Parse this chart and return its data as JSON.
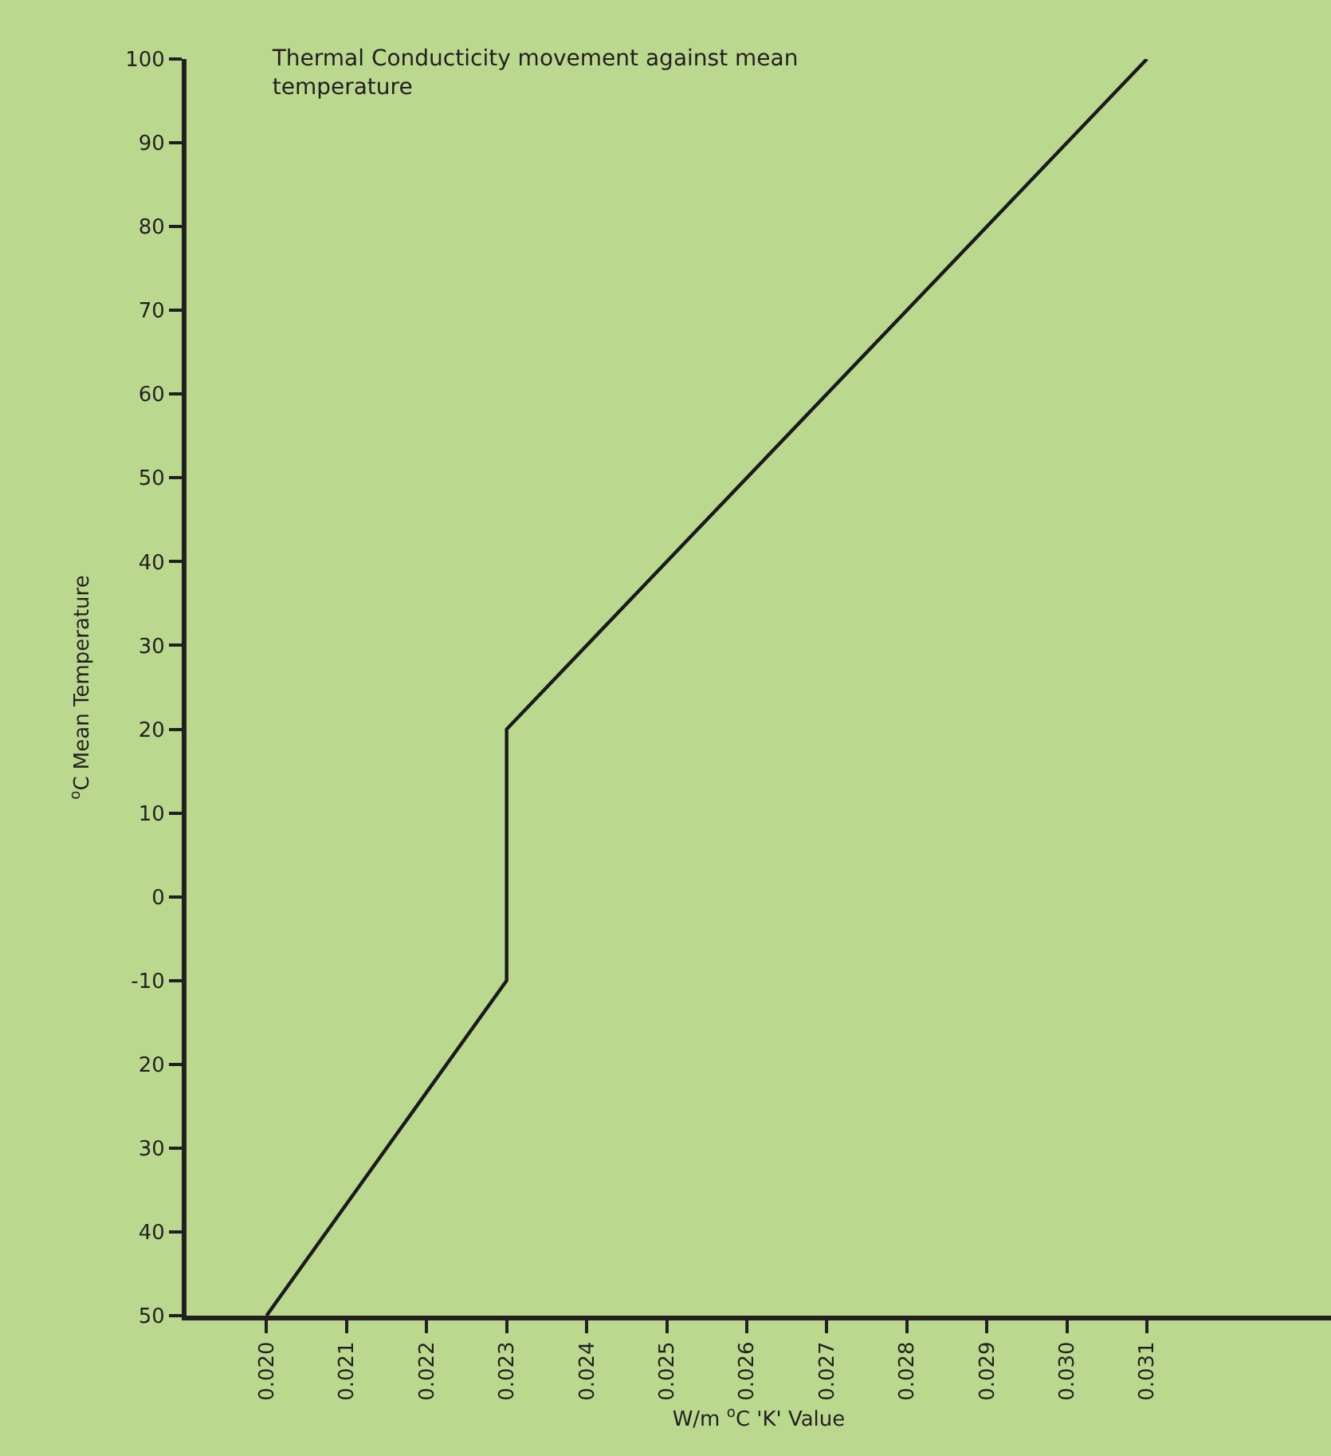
{
  "chart_data": {
    "type": "line",
    "title": "Thermal Conducticity movement against mean temperature",
    "xlabel": "W/m $^{o}$C 'K' Value",
    "ylabel": "$^{o}$C Mean Temperature",
    "series": [
      {
        "color": "#1a1a1a",
        "x": [
          0.02,
          0.023,
          0.023,
          0.031
        ],
        "values": [
          -50,
          -10,
          20,
          100
        ]
      }
    ],
    "xlim": [
      0.019,
      0.0333
    ],
    "xticks": [
      {
        "value": 0.02,
        "label": "0.020"
      },
      {
        "value": 0.021,
        "label": "0.021"
      },
      {
        "value": 0.022,
        "label": "0.022"
      },
      {
        "value": 0.023,
        "label": "0.023"
      },
      {
        "value": 0.024,
        "label": "0.024"
      },
      {
        "value": 0.025,
        "label": "0.025"
      },
      {
        "value": 0.026,
        "label": "0.026"
      },
      {
        "value": 0.027,
        "label": "0.027"
      },
      {
        "value": 0.028,
        "label": "0.028"
      },
      {
        "value": 0.029,
        "label": "0.029"
      },
      {
        "value": 0.03,
        "label": "0.030"
      },
      {
        "value": 0.031,
        "label": "0.031"
      }
    ],
    "ylim": [
      -50,
      100
    ],
    "yticks": [
      {
        "value": -50,
        "label": "50"
      },
      {
        "value": -40,
        "label": "40"
      },
      {
        "value": -30,
        "label": "30"
      },
      {
        "value": -20,
        "label": "20"
      },
      -10,
      0,
      10,
      20,
      30,
      40,
      50,
      60,
      70,
      80,
      90,
      100
    ],
    "grid": false,
    "marker": "none",
    "line_style": "solid"
  }
}
